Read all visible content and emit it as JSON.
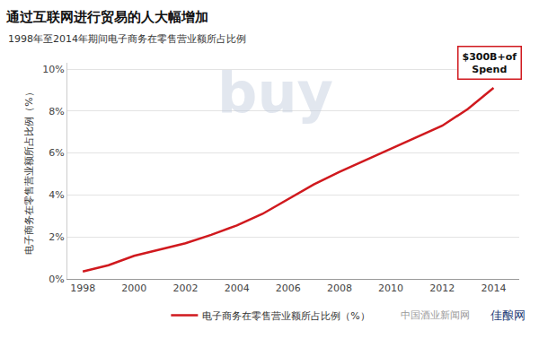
{
  "chart_data": {
    "type": "line",
    "title": "通过互联网进行贸易的人大幅增加",
    "subtitle": "1998年至2014年期间电子商务在零售营业额所占比例",
    "y_label": "电子商务在零售营业额所占比例（%）",
    "x": [
      1998,
      1999,
      2000,
      2001,
      2002,
      2003,
      2004,
      2005,
      2006,
      2007,
      2008,
      2009,
      2010,
      2011,
      2012,
      2013,
      2014
    ],
    "series": [
      {
        "name": "电子商务在零售营业额所占比例（%）",
        "color": "#d0191e",
        "values": [
          0.35,
          0.65,
          1.1,
          1.4,
          1.7,
          2.1,
          2.55,
          3.1,
          3.8,
          4.5,
          5.1,
          5.65,
          6.2,
          6.75,
          7.3,
          8.1,
          9.1
        ]
      }
    ],
    "xlim": [
      1997.4,
      2015
    ],
    "xticks": [
      1998,
      2000,
      2002,
      2004,
      2006,
      2008,
      2010,
      2012,
      2014
    ],
    "ylim": [
      0,
      10.3
    ],
    "yticks": [
      {
        "value": 0,
        "label": "0%"
      },
      {
        "value": 2,
        "label": "2%"
      },
      {
        "value": 4,
        "label": "4%"
      },
      {
        "value": 6,
        "label": "6%"
      },
      {
        "value": 8,
        "label": "8%"
      },
      {
        "value": 10,
        "label": "10%"
      }
    ],
    "grid": true,
    "legend": "bottom",
    "callout": [
      "$300B+of",
      "Spend"
    ],
    "background_text": "buy",
    "watermarks": [
      "中国酒业新闻网",
      "佳酿网"
    ]
  }
}
